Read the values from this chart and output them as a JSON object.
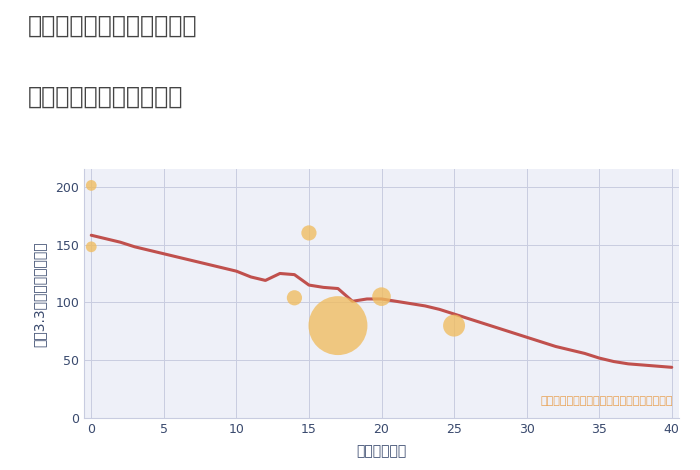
{
  "title_line1": "兵庫県西宮市津門呉羽町の",
  "title_line2": "築年数別中古戸建て価格",
  "xlabel": "築年数（年）",
  "ylabel": "坪（3.3㎡）単価（万円）",
  "annotation": "円の大きさは、取引のあった物件面積を示す",
  "background_color": "#ffffff",
  "plot_bg_color": "#eef0f8",
  "line_color": "#c0504d",
  "line_x": [
    0,
    1,
    2,
    3,
    4,
    5,
    6,
    7,
    8,
    9,
    10,
    11,
    12,
    13,
    14,
    15,
    16,
    17,
    18,
    19,
    20,
    21,
    22,
    23,
    24,
    25,
    26,
    27,
    28,
    29,
    30,
    31,
    32,
    33,
    34,
    35,
    36,
    37,
    38,
    39,
    40
  ],
  "line_y": [
    158,
    155,
    152,
    148,
    145,
    142,
    139,
    136,
    133,
    130,
    127,
    122,
    119,
    125,
    124,
    115,
    113,
    112,
    101,
    103,
    103,
    101,
    99,
    97,
    94,
    90,
    86,
    82,
    78,
    74,
    70,
    66,
    62,
    59,
    56,
    52,
    49,
    47,
    46,
    45,
    44
  ],
  "bubble_x": [
    0,
    0,
    14,
    15,
    17,
    20,
    25
  ],
  "bubble_y": [
    201,
    148,
    104,
    160,
    80,
    105,
    80
  ],
  "bubble_size": [
    60,
    60,
    120,
    120,
    1800,
    180,
    250
  ],
  "bubble_color": "#f0bc5e",
  "bubble_alpha": 0.78,
  "xlim": [
    -0.5,
    40.5
  ],
  "ylim": [
    0,
    215
  ],
  "xticks": [
    0,
    5,
    10,
    15,
    20,
    25,
    30,
    35,
    40
  ],
  "yticks": [
    0,
    50,
    100,
    150,
    200
  ],
  "grid_color": "#c8cce0",
  "title_color": "#444444",
  "tick_label_color": "#3a4a6e",
  "axis_label_color": "#3a4a6e",
  "annotation_color": "#e8a050",
  "title_fontsize": 17,
  "axis_fontsize": 10,
  "tick_fontsize": 9
}
